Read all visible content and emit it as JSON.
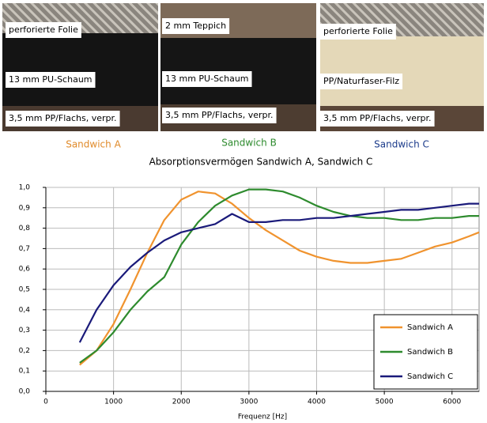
{
  "panels": [
    {
      "layers": [
        "perforierte Folie",
        "13 mm PU-Schaum",
        "3,5 mm PP/Flachs, verpr."
      ],
      "caption": "Sandwich A"
    },
    {
      "layers": [
        "2 mm Teppich",
        "13 mm PU-Schaum",
        "3,5 mm PP/Flachs, verpr."
      ],
      "caption": "Sandwich B"
    },
    {
      "layers": [
        "perforierte Folie",
        "PP/Naturfaser-Filz",
        "3,5 mm PP/Flachs, verpr."
      ],
      "caption": "Sandwich C"
    }
  ],
  "chart_data": {
    "type": "line",
    "title": "Absorptionsvermögen Sandwich A, Sandwich C",
    "x_label": "Frequenz [Hz]",
    "x": [
      500,
      750,
      1000,
      1250,
      1500,
      1750,
      2000,
      2250,
      2500,
      2750,
      3000,
      3250,
      3500,
      3750,
      4000,
      4250,
      4500,
      4750,
      5000,
      5250,
      5500,
      5750,
      6000,
      6250,
      6400
    ],
    "series": [
      {
        "name": "Sandwich A",
        "color": "#f0932e",
        "values": [
          0.13,
          0.2,
          0.33,
          0.5,
          0.68,
          0.84,
          0.94,
          0.98,
          0.97,
          0.92,
          0.85,
          0.79,
          0.74,
          0.69,
          0.66,
          0.64,
          0.63,
          0.63,
          0.64,
          0.65,
          0.68,
          0.71,
          0.73,
          0.76,
          0.78
        ]
      },
      {
        "name": "Sandwich B",
        "color": "#2e8b2e",
        "values": [
          0.14,
          0.2,
          0.29,
          0.4,
          0.49,
          0.56,
          0.72,
          0.83,
          0.91,
          0.96,
          0.99,
          0.99,
          0.98,
          0.95,
          0.91,
          0.88,
          0.86,
          0.85,
          0.85,
          0.84,
          0.84,
          0.85,
          0.85,
          0.86,
          0.86
        ]
      },
      {
        "name": "Sandwich C",
        "color": "#1a1a7a",
        "values": [
          0.24,
          0.4,
          0.52,
          0.61,
          0.68,
          0.74,
          0.78,
          0.8,
          0.82,
          0.87,
          0.83,
          0.83,
          0.84,
          0.84,
          0.85,
          0.85,
          0.86,
          0.87,
          0.88,
          0.89,
          0.89,
          0.9,
          0.91,
          0.92,
          0.92
        ]
      }
    ],
    "xlim": [
      0,
      6400
    ],
    "xticks": [
      0,
      1000,
      2000,
      3000,
      4000,
      5000,
      6000
    ],
    "ylim": [
      0,
      1
    ],
    "yticks": [
      {
        "value": 0,
        "label": "0,0"
      },
      {
        "value": 0.1,
        "label": "0,1"
      },
      {
        "value": 0.2,
        "label": "0,2"
      },
      {
        "value": 0.3,
        "label": "0,3"
      },
      {
        "value": 0.4,
        "label": "0,4"
      },
      {
        "value": 0.5,
        "label": "0,5"
      },
      {
        "value": 0.6,
        "label": "0,6"
      },
      {
        "value": 0.7,
        "label": "0,7"
      },
      {
        "value": 0.8,
        "label": "0,8"
      },
      {
        "value": 0.9,
        "label": "0,9"
      },
      {
        "value": 1,
        "label": "1,0"
      }
    ],
    "grid": true,
    "legend": "lower right"
  }
}
